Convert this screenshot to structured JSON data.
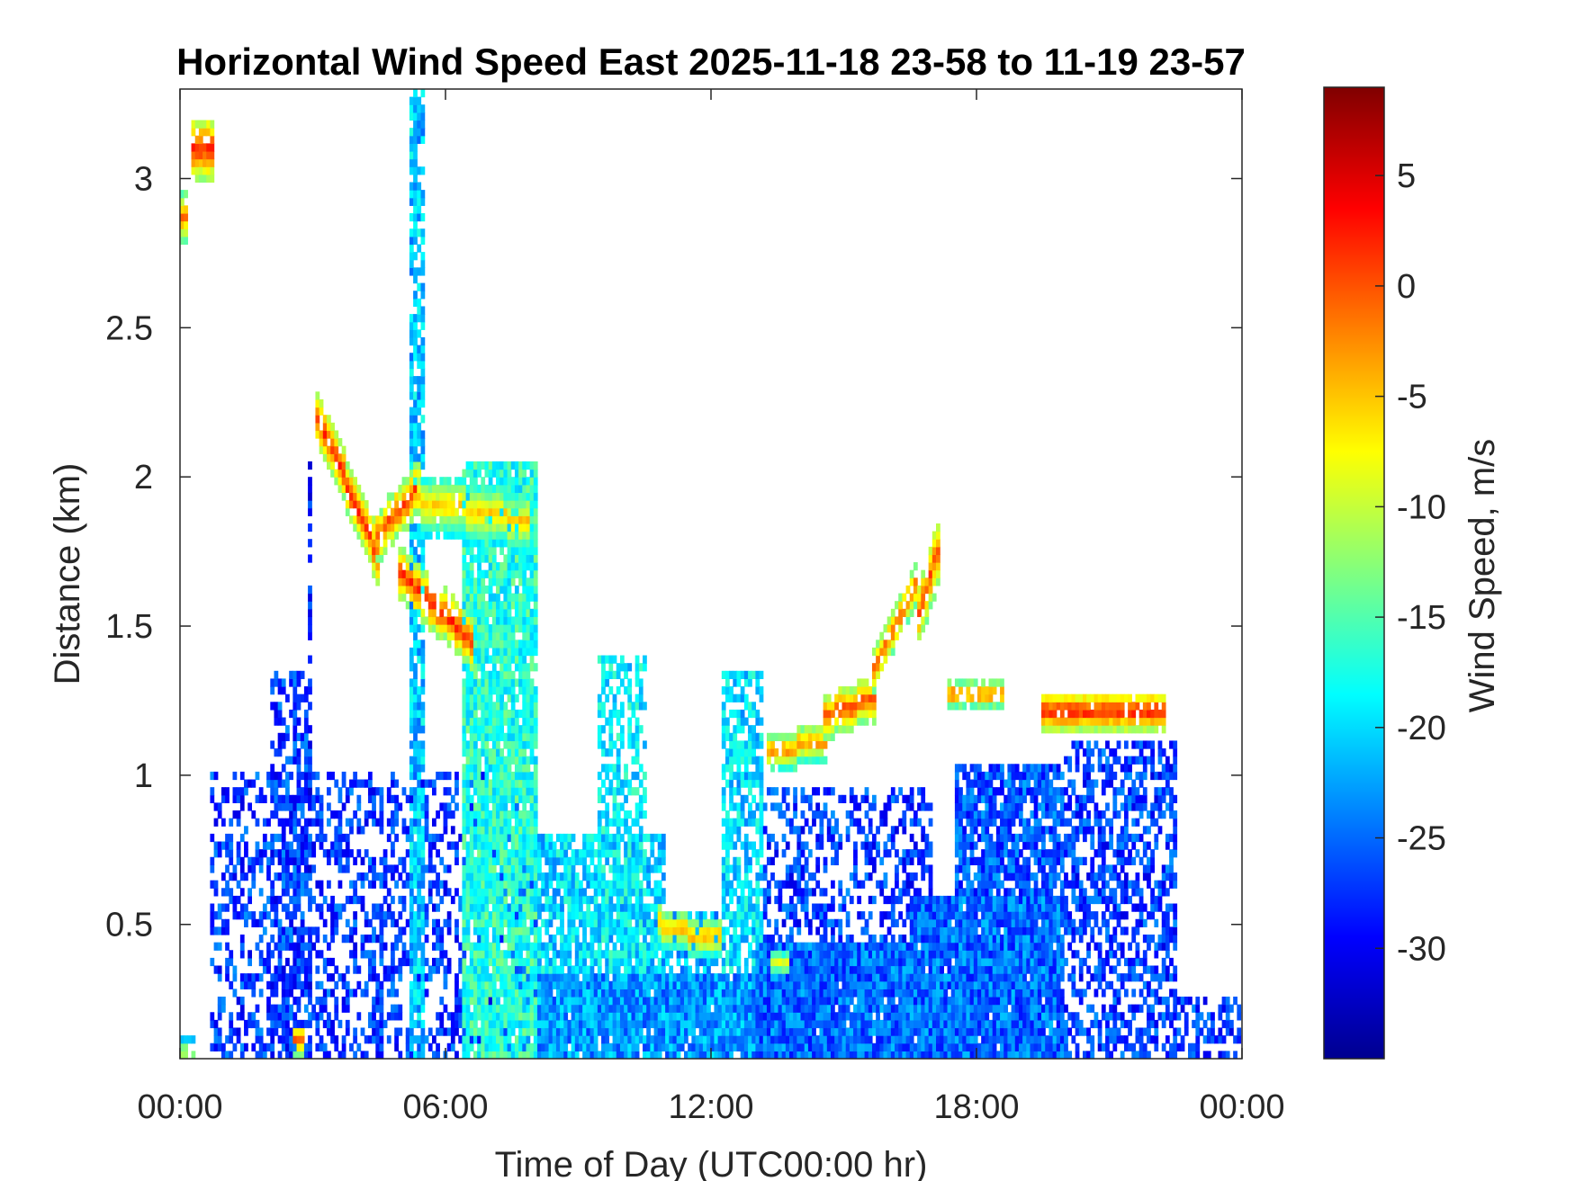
{
  "chart_data": {
    "type": "heatmap",
    "title": "Horizontal Wind Speed East 2025-11-18 23-58 to 11-19 23-57",
    "xlabel": "Time of Day (UTC00:00 hr)",
    "ylabel": "Distance (km)",
    "colorbar_label": "Wind Speed, m/s",
    "xlim_hours": [
      0,
      24
    ],
    "ylim_km": [
      0.05,
      3.3
    ],
    "x_ticks": [
      {
        "value": 0,
        "label": "00:00"
      },
      {
        "value": 6,
        "label": "06:00"
      },
      {
        "value": 12,
        "label": "12:00"
      },
      {
        "value": 18,
        "label": "18:00"
      },
      {
        "value": 24,
        "label": "00:00"
      }
    ],
    "y_ticks": [
      {
        "value": 0.5,
        "label": "0.5"
      },
      {
        "value": 1,
        "label": "1"
      },
      {
        "value": 1.5,
        "label": "1.5"
      },
      {
        "value": 2,
        "label": "2"
      },
      {
        "value": 2.5,
        "label": "2.5"
      },
      {
        "value": 3,
        "label": "3"
      }
    ],
    "colorbar_range": [
      -35,
      9
    ],
    "colorbar_ticks": [
      {
        "value": 5,
        "label": "5"
      },
      {
        "value": 0,
        "label": "0"
      },
      {
        "value": -5,
        "label": "-5"
      },
      {
        "value": -10,
        "label": "-10"
      },
      {
        "value": -15,
        "label": "-15"
      },
      {
        "value": -20,
        "label": "-20"
      },
      {
        "value": -25,
        "label": "-25"
      },
      {
        "value": -30,
        "label": "-30"
      }
    ],
    "colormap": "jet",
    "colormap_stops": [
      "#00008f",
      "#0000ff",
      "#0080ff",
      "#00ffff",
      "#80ff80",
      "#ffff00",
      "#ff8000",
      "#ff0000",
      "#800000"
    ],
    "grid": false,
    "field_regions": [
      {
        "t": [
          0.7,
          8.1
        ],
        "r": [
          0.05,
          1.02
        ],
        "speed": -27,
        "fill": 0.42
      },
      {
        "t": [
          2.0,
          2.9
        ],
        "r": [
          0.05,
          1.35
        ],
        "speed": -27,
        "fill": 0.5
      },
      {
        "t": [
          2.9,
          3.0
        ],
        "r": [
          0.05,
          2.05
        ],
        "speed": -28,
        "fill": 0.6
      },
      {
        "t": [
          6.4,
          8.1
        ],
        "r": [
          0.05,
          2.05
        ],
        "speed": -17,
        "fill": 0.9
      },
      {
        "t": [
          8.1,
          14.0
        ],
        "r": [
          0.05,
          0.33
        ],
        "speed": -23,
        "fill": 0.97
      },
      {
        "t": [
          8.1,
          11.0
        ],
        "r": [
          0.33,
          0.8
        ],
        "speed": -20,
        "fill": 0.75
      },
      {
        "t": [
          9.4,
          10.5
        ],
        "r": [
          0.33,
          1.4
        ],
        "speed": -19,
        "fill": 0.55
      },
      {
        "t": [
          10.5,
          12.3
        ],
        "r": [
          0.33,
          0.55
        ],
        "speed": -22,
        "fill": 0.6
      },
      {
        "t": [
          12.2,
          13.2
        ],
        "r": [
          0.33,
          1.35
        ],
        "speed": -20,
        "fill": 0.7
      },
      {
        "t": [
          13.0,
          16.5
        ],
        "r": [
          0.05,
          0.45
        ],
        "speed": -25,
        "fill": 0.97
      },
      {
        "t": [
          13.2,
          17.0
        ],
        "r": [
          0.45,
          0.95
        ],
        "speed": -27,
        "fill": 0.42
      },
      {
        "t": [
          16.5,
          20.0
        ],
        "r": [
          0.05,
          0.6
        ],
        "speed": -25,
        "fill": 0.97
      },
      {
        "t": [
          17.5,
          20.0
        ],
        "r": [
          0.6,
          1.05
        ],
        "speed": -26,
        "fill": 0.82
      },
      {
        "t": [
          20.0,
          22.5
        ],
        "r": [
          0.05,
          1.12
        ],
        "speed": -27,
        "fill": 0.55
      },
      {
        "t": [
          22.5,
          24.0
        ],
        "r": [
          0.05,
          0.25
        ],
        "speed": -27,
        "fill": 0.4
      },
      {
        "t": [
          5.2,
          5.5
        ],
        "r": [
          0.05,
          3.3
        ],
        "speed": -21,
        "fill": 0.8
      }
    ],
    "wind_features": [
      {
        "t": [
          3.1,
          4.5
        ],
        "r": [
          2.2,
          1.72
        ],
        "width": 0.08,
        "speed": 2,
        "fill": 0.9
      },
      {
        "t": [
          4.5,
          5.4
        ],
        "r": [
          1.8,
          1.97
        ],
        "width": 0.08,
        "speed": 1,
        "fill": 0.85
      },
      {
        "t": [
          5.0,
          6.6
        ],
        "r": [
          1.68,
          1.45
        ],
        "width": 0.08,
        "speed": 2,
        "fill": 0.8
      },
      {
        "t": [
          5.4,
          7.9
        ],
        "r": [
          1.92,
          1.85
        ],
        "width": 0.1,
        "speed": -5,
        "fill": 0.9
      },
      {
        "t": [
          10.8,
          12.2
        ],
        "r": [
          0.5,
          0.45
        ],
        "width": 0.06,
        "speed": -3,
        "fill": 0.9
      },
      {
        "t": [
          13.3,
          14.6
        ],
        "r": [
          1.08,
          1.12
        ],
        "width": 0.06,
        "speed": -2,
        "fill": 0.9
      },
      {
        "t": [
          14.6,
          15.7
        ],
        "r": [
          1.2,
          1.26
        ],
        "width": 0.07,
        "speed": 1,
        "fill": 0.9
      },
      {
        "t": [
          15.7,
          16.6
        ],
        "r": [
          1.35,
          1.65
        ],
        "width": 0.07,
        "speed": 0,
        "fill": 0.8
      },
      {
        "t": [
          16.7,
          17.1
        ],
        "r": [
          1.55,
          1.75
        ],
        "width": 0.1,
        "speed": 1,
        "fill": 0.9
      },
      {
        "t": [
          17.4,
          18.6
        ],
        "r": [
          1.27,
          1.27
        ],
        "width": 0.04,
        "speed": 0,
        "fill": 0.8
      },
      {
        "t": [
          19.5,
          22.2
        ],
        "r": [
          1.22,
          1.22
        ],
        "width": 0.06,
        "speed": 3,
        "fill": 0.95
      },
      {
        "t": [
          0.3,
          0.7
        ],
        "r": [
          3.1,
          3.1
        ],
        "width": 0.1,
        "speed": 2,
        "fill": 0.9
      },
      {
        "t": [
          0.0,
          0.15
        ],
        "r": [
          2.88,
          2.88
        ],
        "width": 0.08,
        "speed": -1,
        "fill": 0.9
      },
      {
        "t": [
          0.0,
          0.3
        ],
        "r": [
          0.08,
          0.08
        ],
        "width": 0.04,
        "speed": -8,
        "fill": 0.8
      },
      {
        "t": [
          2.6,
          2.8
        ],
        "r": [
          0.12,
          0.12
        ],
        "width": 0.05,
        "speed": 0,
        "fill": 0.8
      },
      {
        "t": [
          13.4,
          13.7
        ],
        "r": [
          0.38,
          0.38
        ],
        "width": 0.05,
        "speed": -8,
        "fill": 0.9
      }
    ]
  }
}
